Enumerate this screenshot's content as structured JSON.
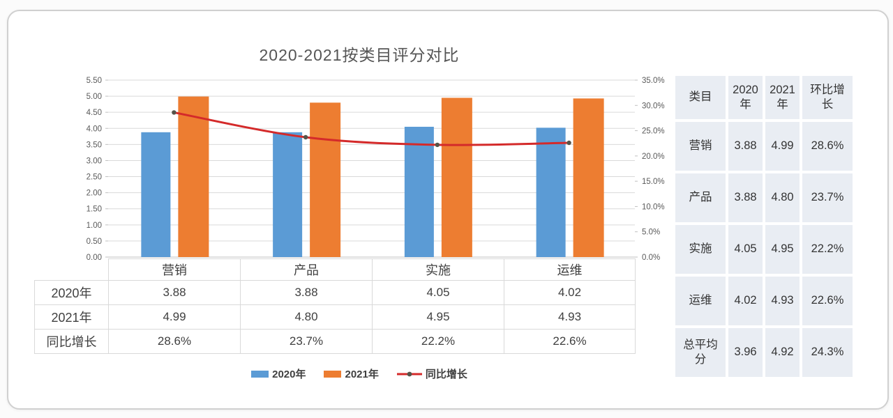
{
  "chart_data": {
    "type": "bar+line combo",
    "title": "2020-2021按类目评分对比",
    "categories": [
      "营销",
      "产品",
      "实施",
      "运维"
    ],
    "series": [
      {
        "name": "2020年",
        "chart": "bar",
        "axis": "left",
        "color": "#5B9BD5",
        "values": [
          3.88,
          3.88,
          4.05,
          4.02
        ],
        "display": [
          "3.88",
          "3.88",
          "4.05",
          "4.02"
        ]
      },
      {
        "name": "2021年",
        "chart": "bar",
        "axis": "left",
        "color": "#ED7D31",
        "values": [
          4.99,
          4.8,
          4.95,
          4.93
        ],
        "display": [
          "4.99",
          "4.80",
          "4.95",
          "4.93"
        ]
      },
      {
        "name": "同比增长",
        "chart": "line",
        "axis": "right",
        "color": "#D42A2A",
        "marker_color": "#55544A",
        "values": [
          28.6,
          23.7,
          22.2,
          22.6
        ],
        "display": [
          "28.6%",
          "23.7%",
          "22.2%",
          "22.6%"
        ]
      }
    ],
    "left_axis": {
      "min": 0,
      "max": 5.5,
      "step": 0.5,
      "tick_values": [
        5.5,
        5.0,
        4.5,
        4.0,
        3.5,
        3.0,
        2.5,
        2.0,
        1.5,
        1.0,
        0.5,
        0.0
      ],
      "tick_labels": [
        "5.50",
        "5.00",
        "4.50",
        "4.00",
        "3.50",
        "3.00",
        "2.50",
        "2.00",
        "1.50",
        "1.00",
        "0.50",
        "0.00"
      ]
    },
    "right_axis": {
      "min": 0,
      "max": 35,
      "step": 5,
      "tick_values": [
        35,
        30,
        25,
        20,
        15,
        10,
        5,
        0
      ],
      "tick_labels": [
        "35.0%",
        "30.0%",
        "25.0%",
        "20.0%",
        "15.0%",
        "10.0%",
        "5.0%",
        "0.0%"
      ]
    },
    "grid": true,
    "legend_position": "bottom",
    "legend": [
      "2020年",
      "2021年",
      "同比增长"
    ]
  },
  "summary_table": {
    "headers": [
      "类目",
      "2020年",
      "2021年",
      "环比增长"
    ],
    "rows": [
      [
        "营销",
        "3.88",
        "4.99",
        "28.6%"
      ],
      [
        "产品",
        "3.88",
        "4.80",
        "23.7%"
      ],
      [
        "实施",
        "4.05",
        "4.95",
        "22.2%"
      ],
      [
        "运维",
        "4.02",
        "4.93",
        "22.6%"
      ],
      [
        "总平均分",
        "3.96",
        "4.92",
        "24.3%"
      ]
    ]
  },
  "colors": {
    "bar_2020": "#5B9BD5",
    "bar_2021": "#ED7D31",
    "growth_line": "#D42A2A",
    "line_marker": "#55544A",
    "gridline": "#d9d9d9",
    "axis_line": "#bfbfbf",
    "axis_text": "#595959",
    "table_border": "#d9d9d9",
    "side_table_cell_bg": "#e9edf3"
  }
}
